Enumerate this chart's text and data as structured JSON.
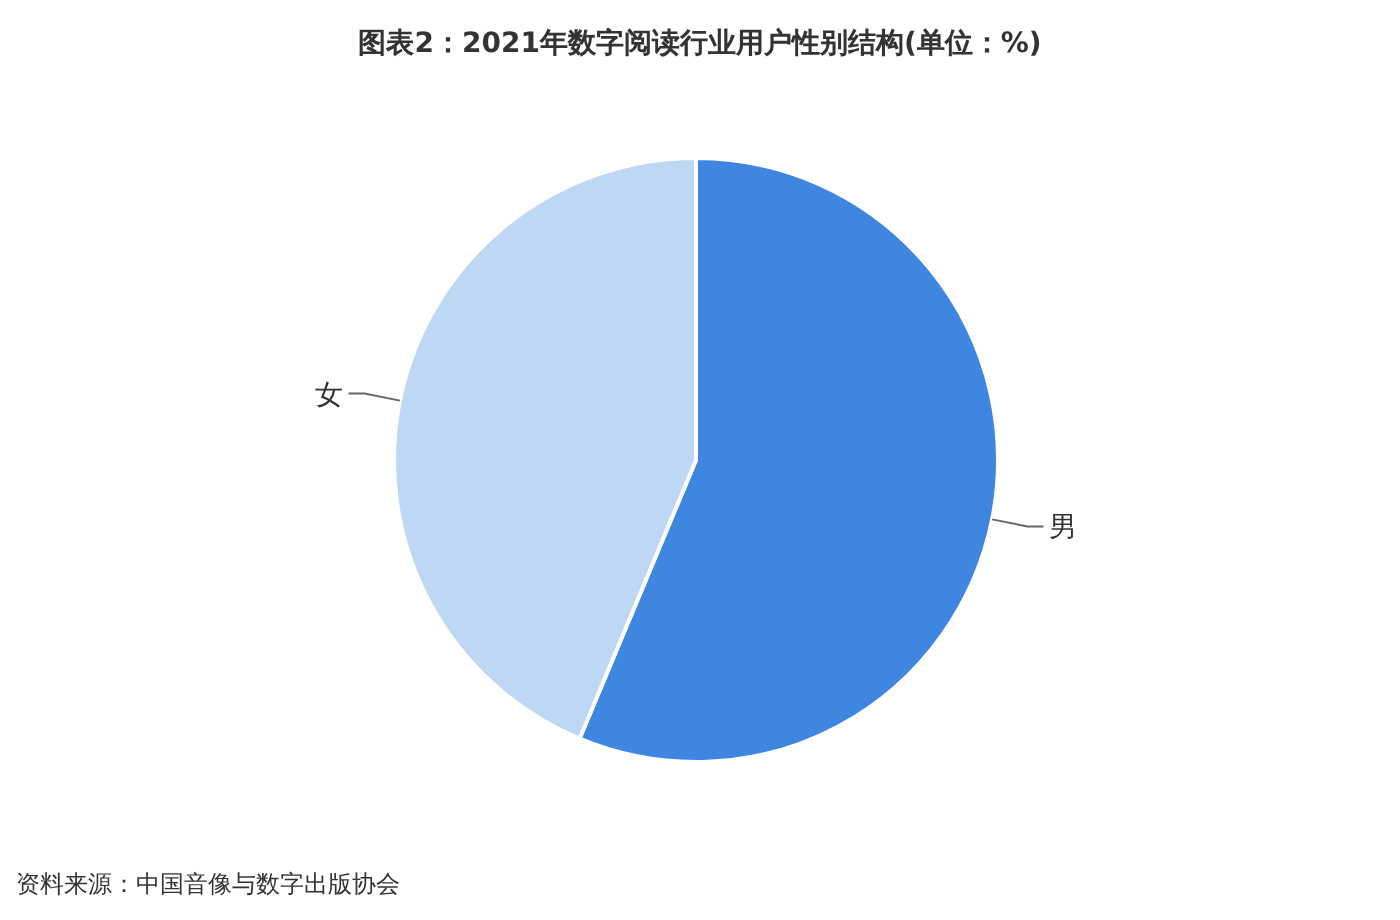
{
  "chart_data": {
    "type": "pie",
    "title": "图表2：2021年数字阅读行业用户性别结构(单位：%)",
    "categories": [
      "男",
      "女"
    ],
    "values": [
      56.3,
      43.7
    ],
    "colors": [
      "#3f86e0",
      "#bdd7f5"
    ],
    "annotations": [
      "资料来源：中国音像与数字出版协会"
    ]
  }
}
